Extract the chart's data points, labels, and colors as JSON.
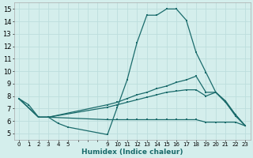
{
  "xlabel": "Humidex (Indice chaleur)",
  "xlim": [
    -0.5,
    23.5
  ],
  "ylim": [
    4.5,
    15.5
  ],
  "xtick_positions": [
    0,
    1,
    2,
    3,
    4,
    5,
    9,
    10,
    11,
    12,
    13,
    14,
    15,
    16,
    17,
    18,
    19,
    20,
    21,
    22,
    23
  ],
  "xtick_labels": [
    "0",
    "1",
    "2",
    "3",
    "4",
    "5",
    "9",
    "10",
    "11",
    "12",
    "13",
    "14",
    "15",
    "16",
    "17",
    "18",
    "19",
    "20",
    "21",
    "22",
    "23"
  ],
  "yticks": [
    5,
    6,
    7,
    8,
    9,
    10,
    11,
    12,
    13,
    14,
    15
  ],
  "bg_color": "#d4eeec",
  "grid_color": "#bddedd",
  "line_color": "#1a6b6b",
  "lines": [
    {
      "x": [
        0,
        1,
        2,
        3,
        4,
        5,
        9,
        10,
        11,
        12,
        13,
        14,
        15,
        16,
        17,
        18,
        19,
        20,
        21,
        22,
        23
      ],
      "y": [
        7.8,
        7.3,
        6.3,
        6.3,
        5.8,
        5.5,
        4.9,
        7.1,
        9.3,
        12.3,
        14.5,
        14.5,
        15.0,
        15.0,
        14.1,
        11.5,
        9.9,
        8.3,
        7.5,
        6.4,
        5.6
      ]
    },
    {
      "x": [
        0,
        2,
        3,
        9,
        10,
        11,
        12,
        13,
        14,
        15,
        16,
        17,
        18,
        19,
        20,
        21,
        22,
        23
      ],
      "y": [
        7.8,
        6.3,
        6.3,
        7.3,
        7.5,
        7.8,
        8.1,
        8.3,
        8.6,
        8.8,
        9.1,
        9.3,
        9.6,
        8.3,
        8.3,
        7.5,
        6.5,
        5.6
      ]
    },
    {
      "x": [
        0,
        2,
        3,
        9,
        10,
        11,
        12,
        13,
        14,
        15,
        16,
        17,
        18,
        19,
        20,
        21,
        22,
        23
      ],
      "y": [
        7.8,
        6.3,
        6.3,
        6.1,
        6.1,
        6.1,
        6.1,
        6.1,
        6.1,
        6.1,
        6.1,
        6.1,
        6.1,
        5.9,
        5.9,
        5.9,
        5.9,
        5.6
      ]
    },
    {
      "x": [
        0,
        2,
        3,
        9,
        10,
        11,
        12,
        13,
        14,
        15,
        16,
        17,
        18,
        19,
        20,
        21,
        22,
        23
      ],
      "y": [
        7.8,
        6.3,
        6.3,
        7.1,
        7.3,
        7.5,
        7.7,
        7.9,
        8.1,
        8.3,
        8.4,
        8.5,
        8.5,
        8.0,
        8.3,
        7.6,
        6.5,
        5.6
      ]
    }
  ]
}
